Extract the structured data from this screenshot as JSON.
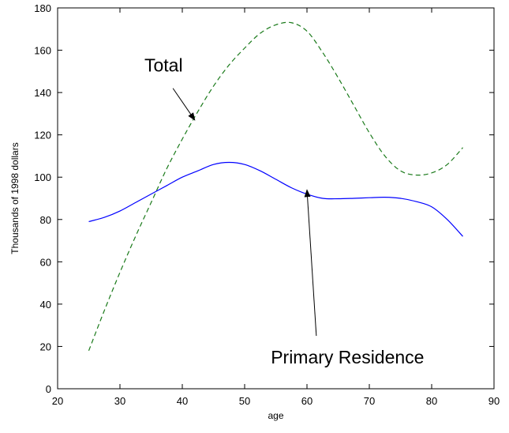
{
  "chart_data": {
    "type": "line",
    "title": "",
    "xlabel": "age",
    "ylabel": "Thousands of 1998 dollars",
    "xlim": [
      20,
      90
    ],
    "ylim": [
      0,
      180
    ],
    "xticks": [
      20,
      30,
      40,
      50,
      60,
      70,
      80,
      90
    ],
    "yticks": [
      0,
      20,
      40,
      60,
      80,
      100,
      120,
      140,
      160,
      180
    ],
    "grid": false,
    "legend": "none",
    "series": [
      {
        "name": "Total",
        "color": "#1a7a1a",
        "style": "dashed",
        "x": [
          25,
          27.5,
          30,
          32.5,
          35,
          37.5,
          40,
          42.5,
          45,
          47.5,
          50,
          52.5,
          55,
          57.5,
          60,
          62.5,
          65,
          67.5,
          70,
          72.5,
          75,
          77.5,
          80,
          82.5,
          85
        ],
        "y": [
          18,
          37,
          55,
          72,
          88,
          104,
          118,
          131,
          143,
          153,
          161,
          168,
          172,
          173,
          169,
          159,
          147,
          134,
          121,
          110,
          103,
          101,
          102,
          106,
          114
        ]
      },
      {
        "name": "Primary Residence",
        "color": "#0000ff",
        "style": "solid",
        "x": [
          25,
          27.5,
          30,
          32.5,
          35,
          37.5,
          40,
          42.5,
          45,
          47.5,
          50,
          52.5,
          55,
          57.5,
          60,
          62.5,
          65,
          67.5,
          70,
          72.5,
          75,
          77.5,
          80,
          82.5,
          85
        ],
        "y": [
          79,
          81,
          84,
          88,
          92,
          96,
          100,
          103,
          106,
          107,
          106,
          103,
          99,
          95,
          92,
          90,
          89.8,
          90,
          90.3,
          90.5,
          90,
          88.5,
          86,
          80,
          72
        ]
      }
    ],
    "annotations": [
      {
        "text": "Total",
        "text_x": 37,
        "text_y": 150,
        "arrow_from": [
          38.5,
          142
        ],
        "arrow_to": [
          42,
          127
        ]
      },
      {
        "text": "Primary Residence",
        "text_x": 66.5,
        "text_y": 12,
        "arrow_from": [
          61.5,
          25
        ],
        "arrow_to": [
          60,
          94
        ]
      }
    ]
  }
}
